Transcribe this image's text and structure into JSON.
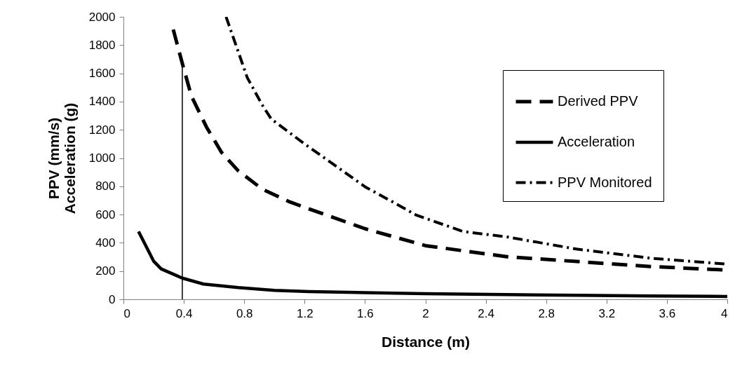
{
  "chart_data": {
    "type": "line",
    "xlabel": "Distance (m)",
    "ylabel": "PPV (mm/s)\nAcceleration (g)",
    "xlim": [
      0,
      4
    ],
    "ylim": [
      0,
      2000
    ],
    "xticks": [
      0,
      0.4,
      0.8,
      1.2,
      1.6,
      2,
      2.4,
      2.8,
      3.2,
      3.6,
      4
    ],
    "yticks": [
      0,
      200,
      400,
      600,
      800,
      1000,
      1200,
      1400,
      1600,
      1800,
      2000
    ],
    "grid": false,
    "legend": "top right",
    "marker": "none",
    "ref_lines": [
      {
        "axis": "x",
        "value": 0.39,
        "color": "#000000"
      }
    ],
    "series": [
      {
        "name": "Derived PPV",
        "color": "#000000",
        "line_style": "dashed",
        "x": [
          0.33,
          0.39,
          0.45,
          0.55,
          0.65,
          0.76,
          0.92,
          1.1,
          1.23,
          1.6,
          2,
          2.55,
          3.04,
          3.49,
          4
        ],
        "values": [
          1910,
          1670,
          1440,
          1220,
          1040,
          910,
          780,
          690,
          640,
          500,
          380,
          300,
          265,
          232,
          207
        ]
      },
      {
        "name": "Acceleration",
        "color": "#000000",
        "line_style": "solid",
        "x": [
          0.1,
          0.2,
          0.25,
          0.39,
          0.53,
          0.76,
          1,
          1.23,
          1.6,
          2,
          2.53,
          3,
          3.5,
          4
        ],
        "values": [
          480,
          270,
          215,
          150,
          108,
          83,
          63,
          55,
          47,
          40,
          33,
          28,
          24,
          20
        ]
      },
      {
        "name": "PPV Monitored",
        "color": "#000000",
        "line_style": "dashdot",
        "x": [
          0.68,
          0.82,
          0.92,
          0.98,
          1.2,
          1.32,
          1.6,
          1.8,
          1.94,
          2.25,
          2.55,
          3,
          3.5,
          4
        ],
        "values": [
          2000,
          1570,
          1375,
          1276,
          1100,
          1010,
          797,
          680,
          596,
          480,
          440,
          356,
          290,
          249
        ]
      }
    ]
  }
}
